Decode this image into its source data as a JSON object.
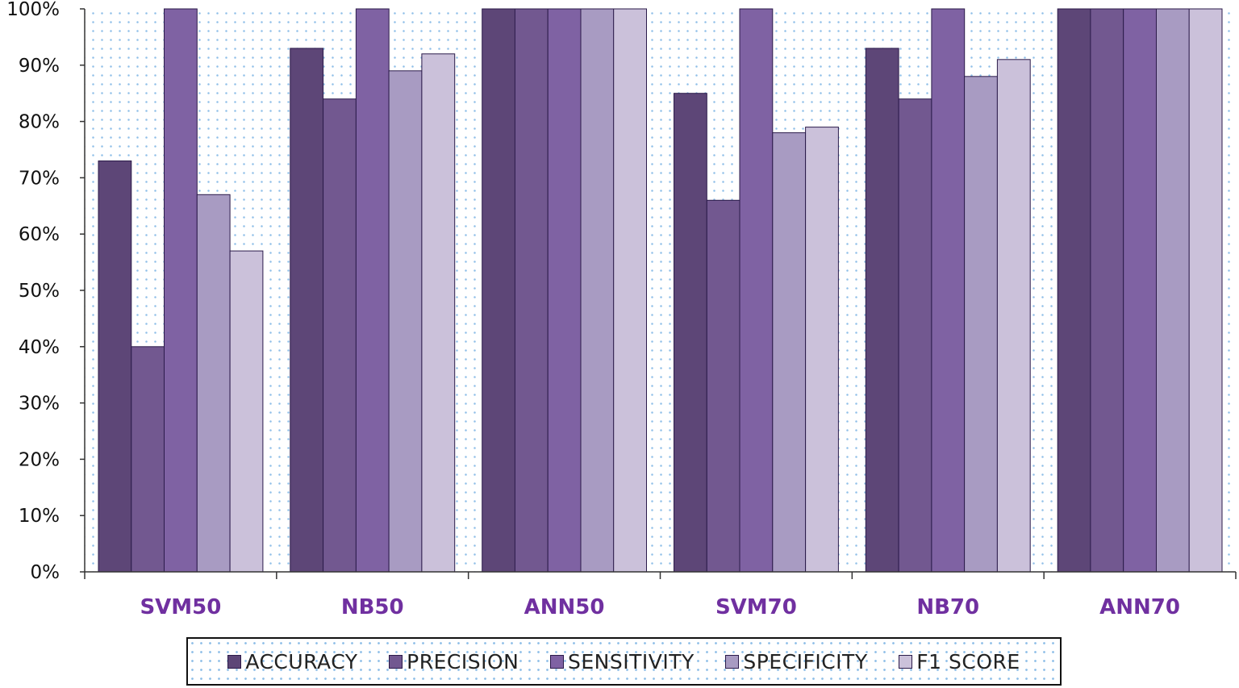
{
  "chart_data": {
    "type": "bar",
    "title": "",
    "xlabel": "",
    "ylabel": "",
    "ylim": [
      0,
      100
    ],
    "y_unit": "%",
    "y_ticks": [
      "0%",
      "10%",
      "20%",
      "30%",
      "40%",
      "50%",
      "60%",
      "70%",
      "80%",
      "90%",
      "100%"
    ],
    "categories": [
      "SVM50",
      "NB50",
      "ANN50",
      "SVM70",
      "NB70",
      "ANN70"
    ],
    "series": [
      {
        "name": "ACCURACY",
        "color": "#5d4677",
        "values": [
          73,
          93,
          100,
          85,
          93,
          100
        ]
      },
      {
        "name": "PRECISION",
        "color": "#725890",
        "values": [
          40,
          84,
          100,
          66,
          84,
          100
        ]
      },
      {
        "name": "SENSITIVITY",
        "color": "#7f62a3",
        "values": [
          100,
          100,
          100,
          100,
          100,
          100
        ]
      },
      {
        "name": "SPECIFICITY",
        "color": "#a89bc2",
        "values": [
          67,
          89,
          100,
          78,
          88,
          100
        ]
      },
      {
        "name": "F1 SCORE",
        "color": "#cbc1da",
        "values": [
          57,
          92,
          100,
          79,
          91,
          100
        ]
      }
    ],
    "category_label_color": "#7030a0",
    "plot_background": "dotted-blue",
    "grid": false,
    "legend_position": "bottom"
  }
}
